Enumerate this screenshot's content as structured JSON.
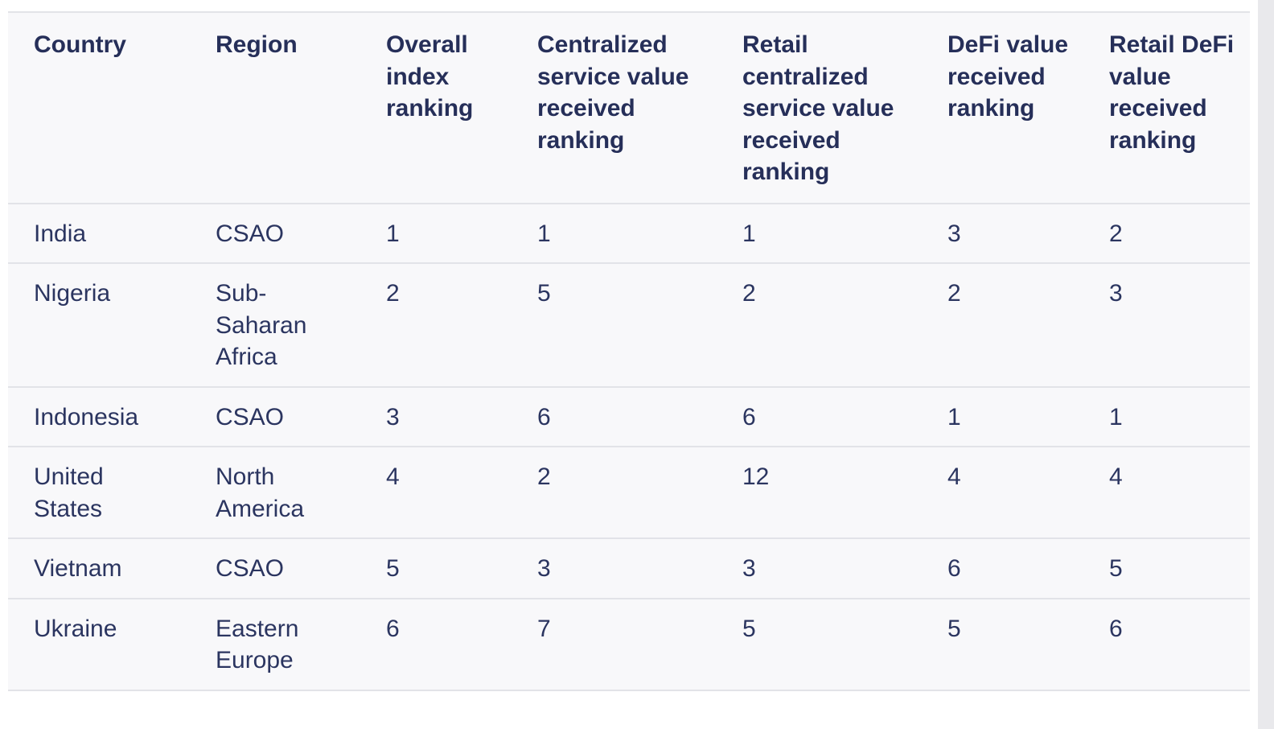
{
  "table": {
    "headers": [
      "Country",
      "Region",
      "Overall index ranking",
      "Centralized service value received ranking",
      "Retail centralized service value received ranking",
      "DeFi value received ranking",
      "Retail DeFi value received ranking"
    ],
    "rows": [
      [
        "India",
        "CSAO",
        "1",
        "1",
        "1",
        "3",
        "2"
      ],
      [
        "Nigeria",
        "Sub-Saharan Africa",
        "2",
        "5",
        "2",
        "2",
        "3"
      ],
      [
        "Indonesia",
        "CSAO",
        "3",
        "6",
        "6",
        "1",
        "1"
      ],
      [
        "United States",
        "North America",
        "4",
        "2",
        "12",
        "4",
        "4"
      ],
      [
        "Vietnam",
        "CSAO",
        "5",
        "3",
        "3",
        "6",
        "5"
      ],
      [
        "Ukraine",
        "Eastern Europe",
        "6",
        "7",
        "5",
        "5",
        "6"
      ]
    ]
  }
}
